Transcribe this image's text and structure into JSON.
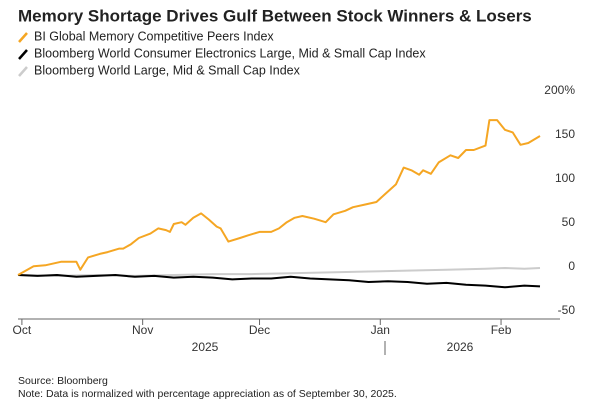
{
  "chart_data": {
    "type": "line",
    "title": "Memory Shortage Drives Gulf Between Stock Winners & Losers",
    "series": [
      {
        "name": "BI Global Memory Competitive Peers Index",
        "color": "#f5a623",
        "x": [
          0,
          4,
          7,
          11,
          15,
          16,
          18,
          21,
          23,
          26,
          27,
          29,
          31,
          34,
          36,
          38,
          39,
          40,
          42,
          43,
          45,
          47,
          49,
          51,
          52,
          54,
          57,
          59,
          62,
          65,
          67,
          69,
          71,
          73,
          76,
          79,
          81,
          84,
          86,
          89,
          92,
          94,
          97,
          99,
          101,
          103,
          104,
          106,
          108,
          111,
          113,
          115,
          117,
          120,
          121,
          123,
          125,
          127,
          129,
          131,
          134
        ],
        "values": [
          0,
          10,
          11,
          15,
          15,
          6,
          20,
          24,
          26,
          30,
          30,
          35,
          42,
          47,
          53,
          51,
          49,
          58,
          60,
          57,
          65,
          70,
          63,
          55,
          53,
          38,
          42,
          45,
          49,
          49,
          53,
          60,
          65,
          67,
          64,
          60,
          69,
          73,
          77,
          80,
          83,
          91,
          103,
          122,
          119,
          114,
          119,
          115,
          128,
          136,
          133,
          142,
          142,
          147,
          176,
          176,
          165,
          162,
          148,
          150,
          158
        ]
      },
      {
        "name": "Bloomberg World Consumer Electronics Large, Mid & Small Cap Index",
        "color": "#000000",
        "x": [
          0,
          5,
          10,
          15,
          20,
          25,
          30,
          35,
          40,
          45,
          50,
          55,
          60,
          65,
          70,
          75,
          80,
          85,
          90,
          95,
          100,
          105,
          110,
          115,
          120,
          125,
          130,
          134
        ],
        "values": [
          0,
          -1,
          0,
          -2,
          -1,
          0,
          -2,
          -1,
          -3,
          -2,
          -3,
          -5,
          -4,
          -4,
          -2,
          -4,
          -5,
          -6,
          -8,
          -7,
          -8,
          -10,
          -9,
          -11,
          -12,
          -14,
          -12,
          -13
        ]
      },
      {
        "name": "Bloomberg World Large, Mid & Small Cap Index",
        "color": "#cccccc",
        "x": [
          0,
          10,
          20,
          30,
          40,
          50,
          60,
          70,
          80,
          90,
          100,
          110,
          120,
          125,
          130,
          134
        ],
        "values": [
          0,
          -1,
          0,
          -1,
          0,
          1,
          1,
          2,
          3,
          4,
          5,
          6,
          7,
          8,
          7,
          8
        ]
      }
    ],
    "xlim": [
      0,
      134
    ],
    "xticks": [
      {
        "value": 1,
        "label": "Oct"
      },
      {
        "value": 32,
        "label": "Nov"
      },
      {
        "value": 62,
        "label": "Dec"
      },
      {
        "value": 93,
        "label": "Jan"
      },
      {
        "value": 124,
        "label": "Feb"
      }
    ],
    "years": [
      "2025",
      "2026"
    ],
    "ylim": [
      -50,
      200
    ],
    "yticks": [
      -50,
      0,
      50,
      100,
      150,
      {
        "value": 200,
        "label": "200%"
      }
    ],
    "grid": false,
    "source": "Source: Bloomberg",
    "note": "Note: Data is normalized with percentage appreciation as of September 30, 2025."
  }
}
